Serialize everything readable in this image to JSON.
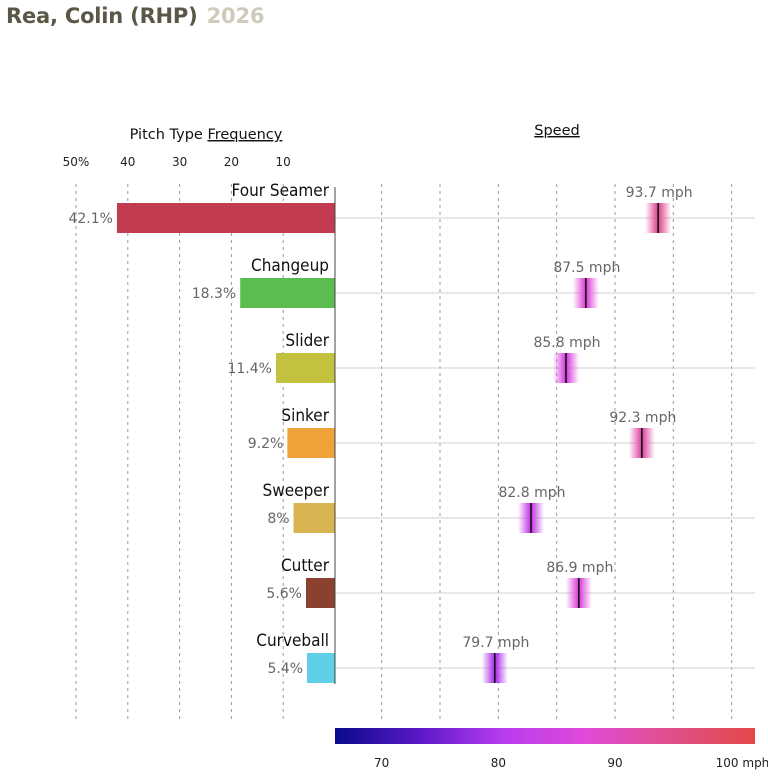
{
  "header": {
    "player": "Rea, Colin (RHP)",
    "year": "2026",
    "frequency_prefix": "Pitch Type ",
    "frequency_label": "Frequency",
    "speed_label": "Speed"
  },
  "colors": {
    "title": "#5b5747",
    "year": "#cfcbbb",
    "speed_scale": [
      "#0a0a8c",
      "#5a18c8",
      "#b83cf0",
      "#e04ad8",
      "#e0508a",
      "#e24848"
    ]
  },
  "chart_data": {
    "type": "bar",
    "title": "Rea, Colin (RHP) 2026",
    "categories": [
      "Four Seamer",
      "Changeup",
      "Slider",
      "Sinker",
      "Sweeper",
      "Cutter",
      "Curveball"
    ],
    "frequency": {
      "axis_ticks": [
        "50%",
        "40",
        "30",
        "20",
        "10"
      ],
      "tick_values": [
        50,
        40,
        30,
        20,
        10
      ],
      "xlim": [
        0,
        50
      ],
      "values": [
        42.1,
        18.3,
        11.4,
        9.2,
        8,
        5.6,
        5.4
      ],
      "labels": [
        "42.1%",
        "18.3%",
        "11.4%",
        "9.2%",
        "8%",
        "5.6%",
        "5.4%"
      ],
      "bar_colors": [
        "#c23b50",
        "#5bbd50",
        "#c2c23e",
        "#f0a23a",
        "#d8b550",
        "#8a4130",
        "#5dcfe6"
      ]
    },
    "speed": {
      "values": [
        93.7,
        87.5,
        85.8,
        92.3,
        82.8,
        86.9,
        79.7
      ],
      "labels": [
        "93.7 mph",
        "87.5 mph",
        "85.8 mph",
        "92.3 mph",
        "82.8 mph",
        "86.9 mph",
        "79.7 mph"
      ],
      "xlim": [
        66,
        102
      ],
      "axis_ticks": [
        "70",
        "80",
        "90",
        "100 mph"
      ],
      "tick_values": [
        70,
        80,
        90,
        100
      ],
      "grid_values": [
        70,
        75,
        80,
        85,
        90,
        95,
        100
      ],
      "grid": true
    }
  }
}
